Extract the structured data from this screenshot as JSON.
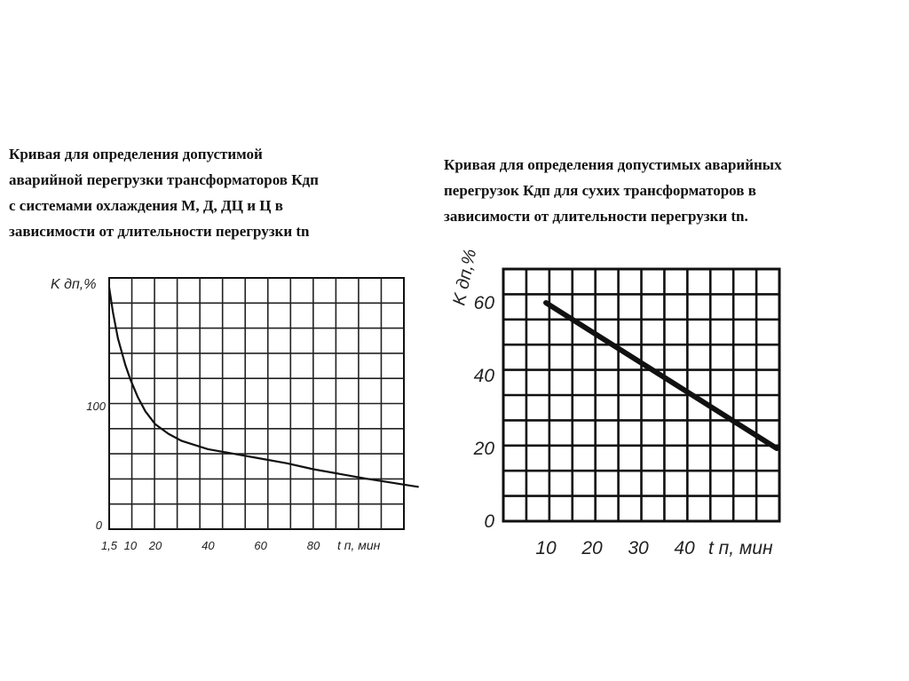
{
  "captions": {
    "left": [
      "Кривая для определения допустимой",
      "аварийной перегрузки трансформаторов Кдп",
      " с системами охлаждения М, Д, ДЦ и Ц  в",
      "зависимости от длительности перегрузки tn"
    ],
    "right": [
      "Кривая для определения допустимых аварийных",
      "перегрузок Кдп для сухих трансформаторов в",
      "зависимости от длительности перегрузки tn."
    ]
  },
  "chart_data": [
    {
      "type": "line",
      "ylabel": "K дп,%",
      "xlabel": "t п, мин",
      "x_tick_labels": [
        "1,5",
        "10",
        "20",
        "40",
        "60",
        "80"
      ],
      "y_tick_labels": [
        "100",
        "0"
      ],
      "series": [
        {
          "x": [
            1.5,
            3,
            5,
            8,
            10,
            13,
            16,
            20,
            25,
            30,
            40,
            50,
            60,
            70,
            80,
            90,
            100,
            120
          ],
          "y": [
            201,
            180,
            158,
            135,
            123,
            108,
            96,
            85,
            77,
            71,
            64,
            60,
            56,
            52,
            47,
            43,
            39,
            32
          ]
        }
      ],
      "grid": true
    },
    {
      "type": "line",
      "ylabel": "K дп,%",
      "xlabel": "t п, мин",
      "x_tick_labels": [
        "10",
        "20",
        "30",
        "40"
      ],
      "y_tick_labels": [
        "60",
        "40",
        "20",
        "0"
      ],
      "series": [
        {
          "x": [
            10,
            60
          ],
          "y": [
            60,
            20
          ]
        }
      ],
      "grid": true
    }
  ]
}
